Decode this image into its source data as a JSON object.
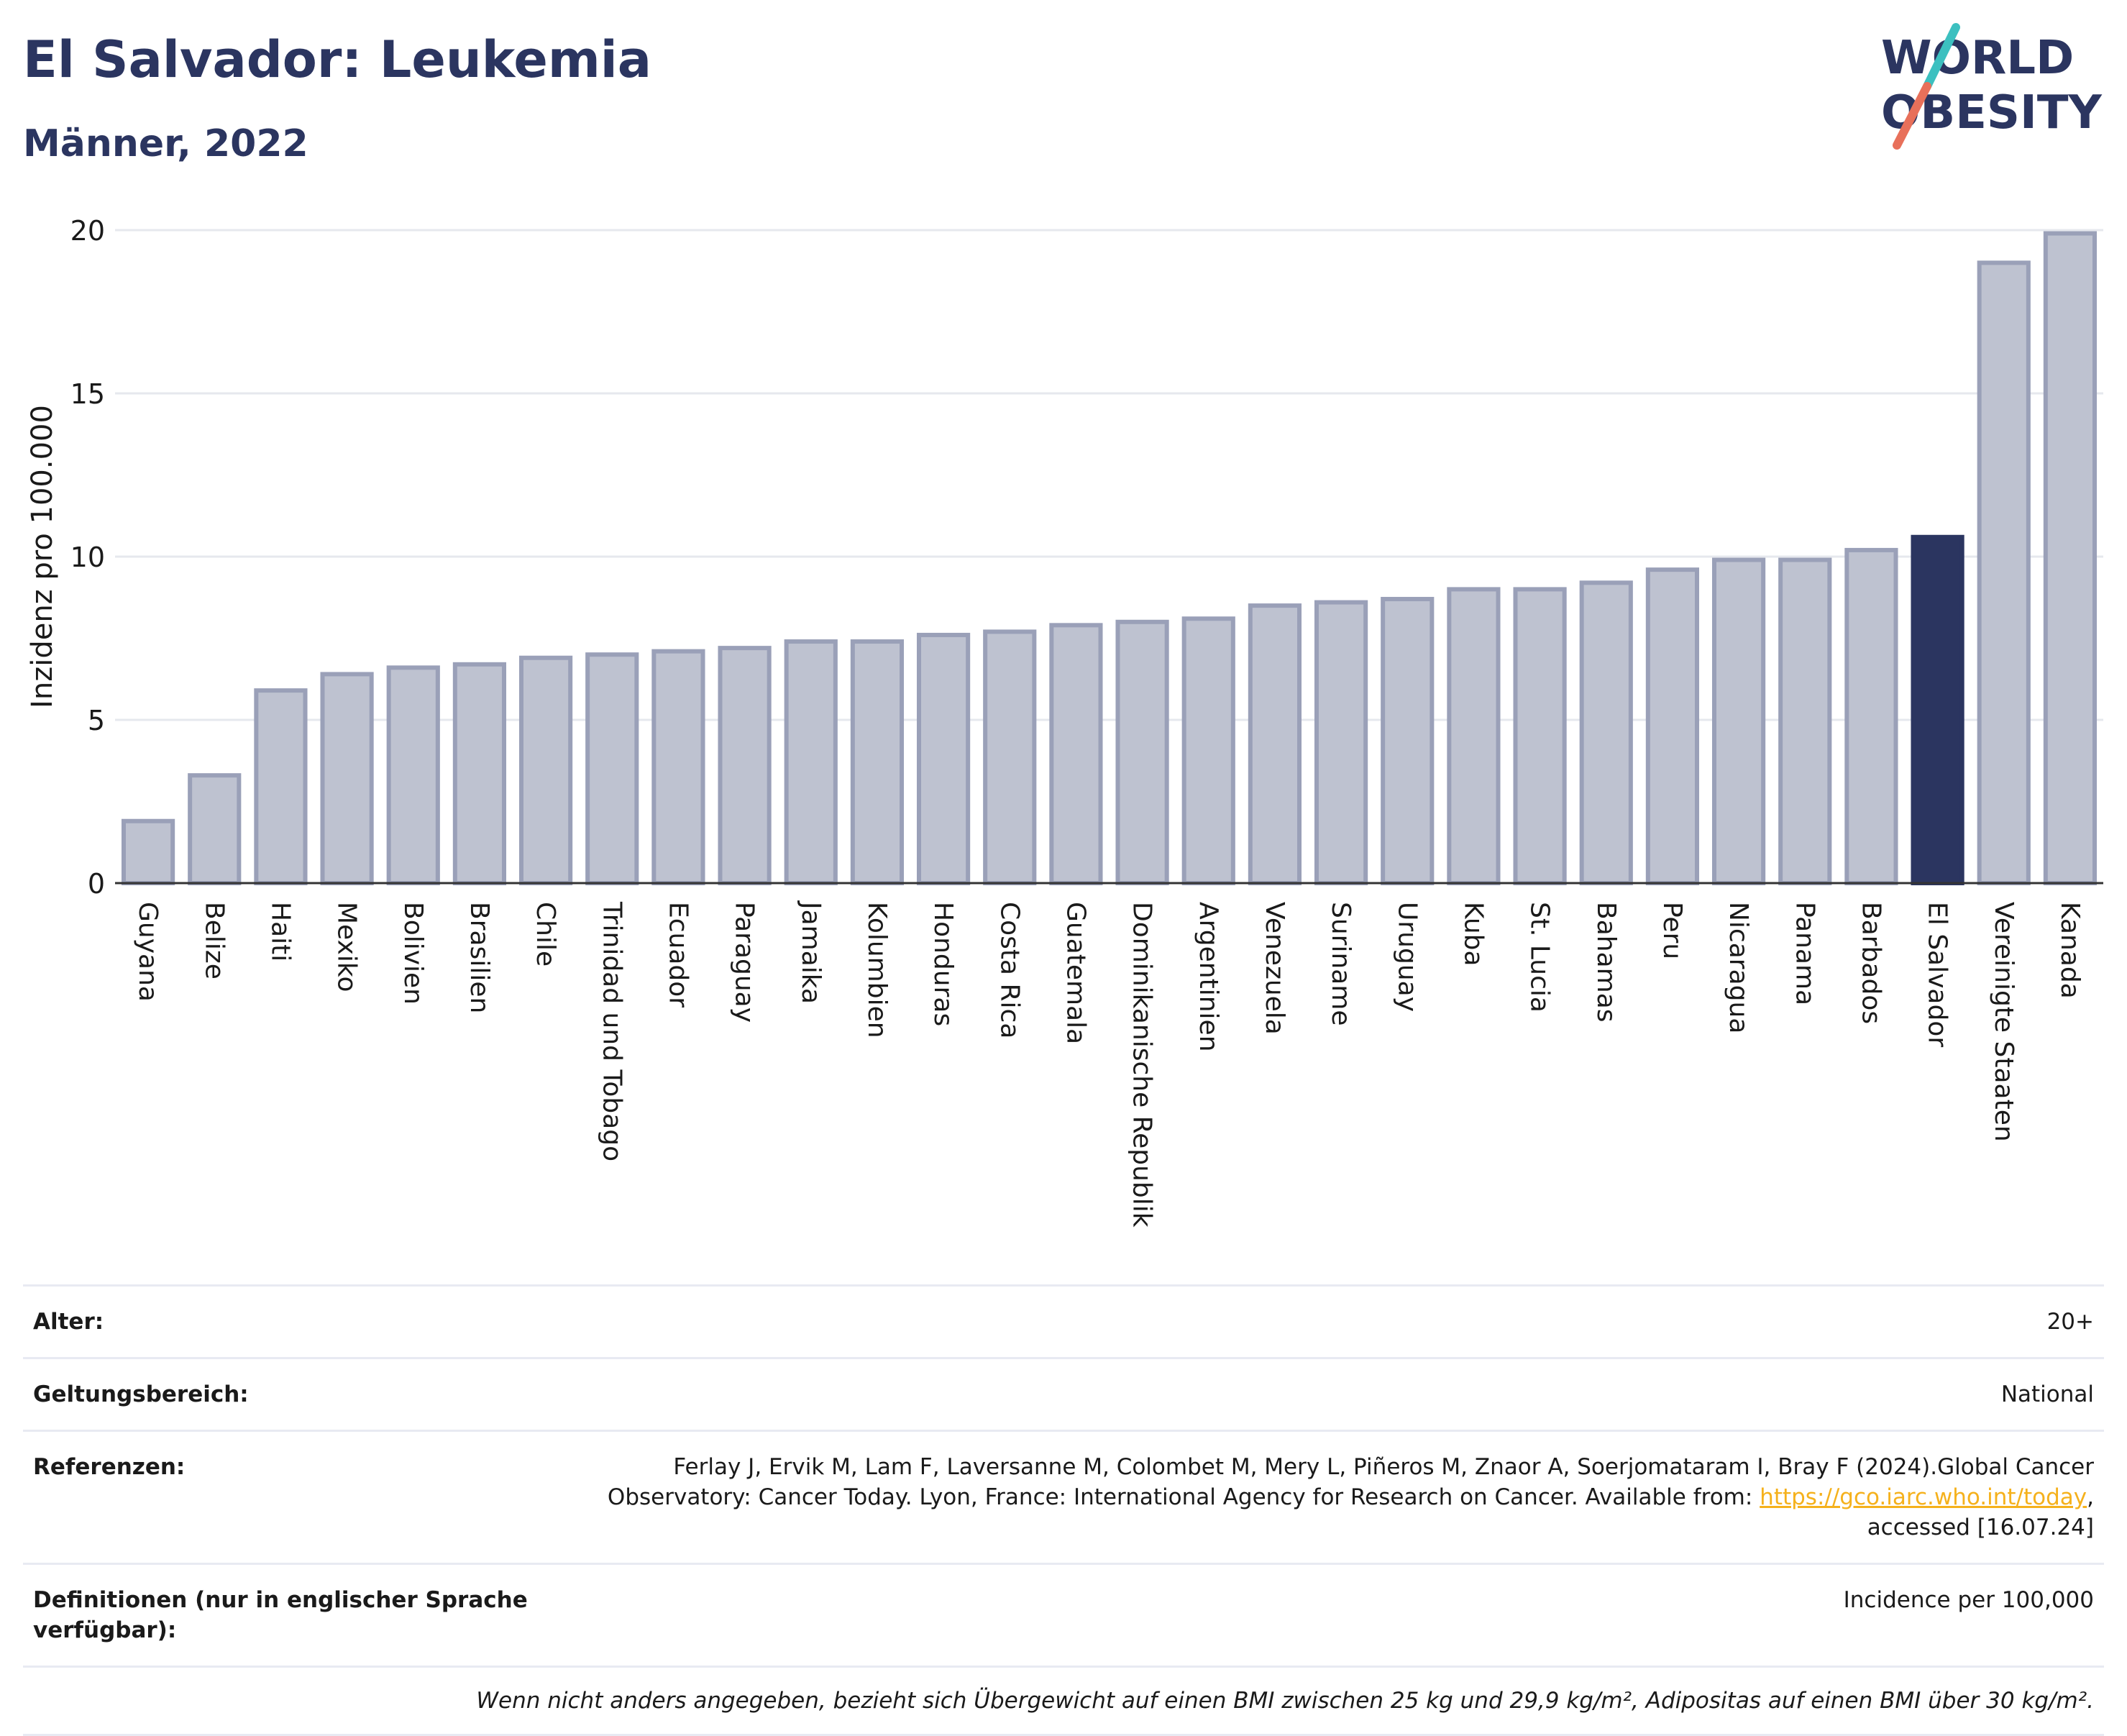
{
  "header": {
    "title": "El Salvador: Leukemia",
    "subtitle": "Männer, 2022"
  },
  "logo": {
    "line1": "WORLD",
    "line2": "OBESITY",
    "colors": {
      "text": "#2b3560",
      "slash_top": "#3cc0c0",
      "slash_bottom": "#e8705a"
    }
  },
  "chart_data": {
    "type": "bar",
    "ylabel": "Inzidenz pro 100.000",
    "ylim": [
      0,
      20
    ],
    "yticks": [
      0,
      5,
      10,
      15,
      20
    ],
    "grid": true,
    "highlight": "El Salvador",
    "colors": {
      "bar": "#bec2d0",
      "bar_edge": "#9aa0b8",
      "highlight": "#2b3560"
    },
    "categories": [
      "Guyana",
      "Belize",
      "Haiti",
      "Mexiko",
      "Bolivien",
      "Brasilien",
      "Chile",
      "Trinidad und Tobago",
      "Ecuador",
      "Paraguay",
      "Jamaika",
      "Kolumbien",
      "Honduras",
      "Costa Rica",
      "Guatemala",
      "Dominikanische Republik",
      "Argentinien",
      "Venezuela",
      "Suriname",
      "Uruguay",
      "Kuba",
      "St. Lucia",
      "Bahamas",
      "Peru",
      "Nicaragua",
      "Panama",
      "Barbados",
      "El Salvador",
      "Vereinigte Staaten",
      "Kanada"
    ],
    "values": [
      1.9,
      3.3,
      5.9,
      6.4,
      6.6,
      6.7,
      6.9,
      7.0,
      7.1,
      7.2,
      7.4,
      7.4,
      7.6,
      7.7,
      7.9,
      8.0,
      8.1,
      8.5,
      8.6,
      8.7,
      9.0,
      9.0,
      9.2,
      9.6,
      9.9,
      9.9,
      10.2,
      10.6,
      19.0,
      19.9
    ]
  },
  "meta": {
    "age_label": "Alter:",
    "age_value": "20+",
    "scope_label": "Geltungsbereich:",
    "scope_value": "National",
    "ref_label": "Referenzen:",
    "ref_text_1": "Ferlay J, Ervik M, Lam F, Laversanne M, Colombet M, Mery L, Piñeros M, Znaor A, Soerjomataram I, Bray F (2024).Global Cancer Observatory: Cancer Today. Lyon, France: International Agency for Research on Cancer. Available from: ",
    "ref_link": "https://gco.iarc.who.int/today",
    "ref_text_2": ", accessed [16.07.24]",
    "def_label": "Definitionen (nur in englischer Sprache verfügbar):",
    "def_value": "Incidence per 100,000",
    "note": "Wenn nicht anders angegeben, bezieht sich Übergewicht auf einen BMI zwischen 25 kg und 29,9 kg/m², Adipositas auf einen BMI über 30 kg/m²."
  }
}
